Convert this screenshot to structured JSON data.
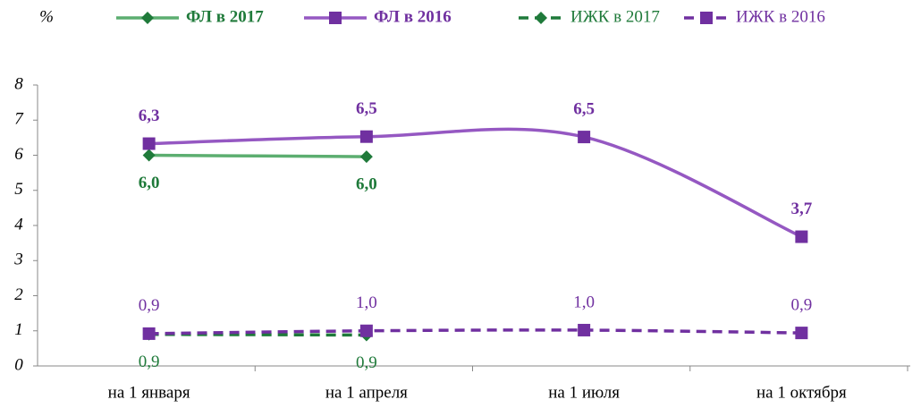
{
  "chart_data": {
    "type": "line",
    "unit_label": "%",
    "categories": [
      "на 1 января",
      "на 1 апреля",
      "на 1 июля",
      "на 1 октября"
    ],
    "ylim": [
      0,
      8
    ],
    "yticks": [
      0,
      1,
      2,
      3,
      4,
      5,
      6,
      7,
      8
    ],
    "legend": "top",
    "series": [
      {
        "name": "ФЛ в 2017",
        "color": "#1f7a3a",
        "line_color": "#5cae70",
        "marker": "diamond",
        "dash": false,
        "bold": true,
        "label_position": "below",
        "values": [
          6.0,
          5.96,
          null,
          null
        ],
        "value_labels": [
          "6,0",
          "6,0",
          null,
          null
        ]
      },
      {
        "name": "ФЛ в 2016",
        "color": "#7030a0",
        "line_color": "#9558c2",
        "marker": "square",
        "dash": false,
        "bold": true,
        "label_position": "above",
        "values": [
          6.33,
          6.53,
          6.52,
          3.68
        ],
        "value_labels": [
          "6,3",
          "6,5",
          "6,5",
          "3,7"
        ]
      },
      {
        "name": "ИЖК в 2017",
        "color": "#1f7a3a",
        "line_color": "#1f7a3a",
        "marker": "diamond",
        "dash": true,
        "bold": false,
        "label_position": "below",
        "values": [
          0.9,
          0.88,
          null,
          null
        ],
        "value_labels": [
          "0,9",
          "0,9",
          null,
          null
        ]
      },
      {
        "name": "ИЖК в 2016",
        "color": "#7030a0",
        "line_color": "#7030a0",
        "marker": "square",
        "dash": true,
        "bold": false,
        "label_position": "above",
        "values": [
          0.92,
          1.0,
          1.02,
          0.94
        ],
        "value_labels": [
          "0,9",
          "1,0",
          "1,0",
          "0,9"
        ]
      }
    ]
  }
}
